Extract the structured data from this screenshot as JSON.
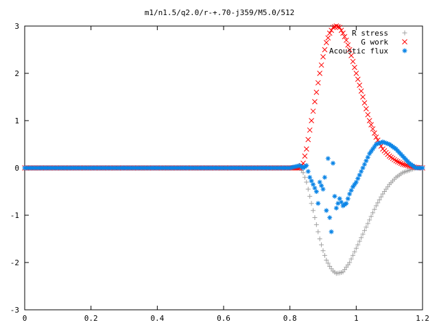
{
  "chart_data": {
    "type": "scatter",
    "title": "m1/n1.5/q2.0/r-+.70-j359/M5.0/512",
    "xlabel": "",
    "ylabel": "",
    "xlim": [
      0,
      1.2
    ],
    "ylim": [
      -3,
      3
    ],
    "x_ticks": [
      "0",
      "0.2",
      "0.4",
      "0.6",
      "0.8",
      "1",
      "1.2"
    ],
    "y_ticks": [
      "3",
      "2",
      "1",
      "0",
      "-1",
      "-2",
      "-3"
    ],
    "grid": false,
    "legend_position": "top-right",
    "series": [
      {
        "name": "R stress",
        "marker": "plus",
        "color": "#a0a0a0",
        "x": [
          0.0,
          0.2,
          0.4,
          0.6,
          0.8,
          0.83,
          0.84,
          0.85,
          0.86,
          0.87,
          0.88,
          0.89,
          0.9,
          0.91,
          0.92,
          0.93,
          0.94,
          0.95,
          0.96,
          0.97,
          0.98,
          0.99,
          1.0,
          1.02,
          1.04,
          1.06,
          1.08,
          1.1,
          1.12,
          1.14,
          1.16,
          1.18,
          1.2
        ],
        "values": [
          0,
          0,
          0,
          0,
          0,
          0,
          -0.1,
          -0.3,
          -0.6,
          -0.9,
          -1.2,
          -1.5,
          -1.75,
          -1.95,
          -2.08,
          -2.18,
          -2.23,
          -2.22,
          -2.2,
          -2.1,
          -2.0,
          -1.85,
          -1.7,
          -1.4,
          -1.1,
          -0.8,
          -0.55,
          -0.35,
          -0.2,
          -0.1,
          -0.05,
          0,
          0
        ]
      },
      {
        "name": "G work",
        "marker": "cross",
        "color": "#ff0000",
        "x": [
          0.0,
          0.2,
          0.4,
          0.6,
          0.8,
          0.83,
          0.84,
          0.85,
          0.86,
          0.87,
          0.88,
          0.89,
          0.9,
          0.91,
          0.92,
          0.93,
          0.94,
          0.95,
          0.96,
          0.97,
          0.98,
          0.99,
          1.0,
          1.02,
          1.04,
          1.06,
          1.08,
          1.1,
          1.12,
          1.14,
          1.16,
          1.18,
          1.2
        ],
        "values": [
          0,
          0,
          0,
          0,
          0,
          0,
          0.1,
          0.4,
          0.8,
          1.2,
          1.6,
          2.0,
          2.35,
          2.65,
          2.85,
          2.97,
          3.0,
          2.97,
          2.85,
          2.7,
          2.5,
          2.25,
          2.0,
          1.5,
          1.0,
          0.65,
          0.4,
          0.25,
          0.15,
          0.08,
          0.04,
          0.01,
          0
        ]
      },
      {
        "name": "Acoustic flux",
        "marker": "star",
        "color": "#0a84e6",
        "x": [
          0.0,
          0.2,
          0.4,
          0.6,
          0.8,
          0.83,
          0.84,
          0.85,
          0.86,
          0.87,
          0.88,
          0.885,
          0.89,
          0.9,
          0.905,
          0.91,
          0.915,
          0.92,
          0.925,
          0.93,
          0.935,
          0.94,
          0.95,
          0.96,
          0.97,
          0.98,
          0.99,
          1.0,
          1.02,
          1.04,
          1.06,
          1.08,
          1.1,
          1.12,
          1.14,
          1.16,
          1.18,
          1.2
        ],
        "values": [
          0,
          0,
          0,
          0,
          0,
          0.05,
          0.0,
          0.05,
          -0.2,
          -0.35,
          -0.5,
          -0.75,
          -0.3,
          -0.45,
          -0.2,
          -0.9,
          0.2,
          -1.05,
          -1.35,
          0.1,
          -0.6,
          -0.85,
          -0.65,
          -0.8,
          -0.75,
          -0.55,
          -0.4,
          -0.3,
          0.0,
          0.3,
          0.5,
          0.55,
          0.5,
          0.4,
          0.25,
          0.1,
          0.0,
          0.0
        ]
      }
    ]
  }
}
